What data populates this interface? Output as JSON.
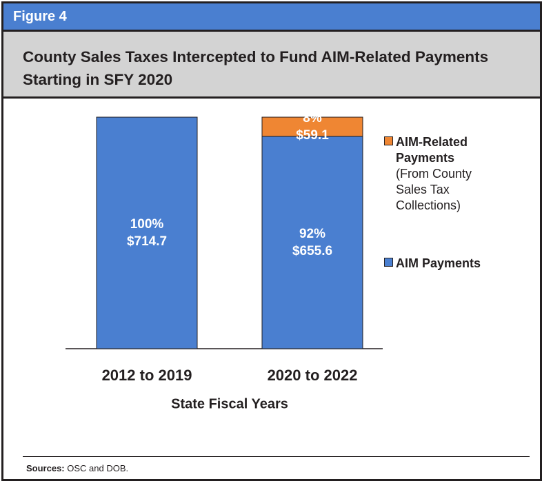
{
  "figure_label": "Figure 4",
  "chart_data": {
    "type": "stacked_bar",
    "title": "County Sales Taxes Intercepted to Fund AIM-Related Payments Starting in SFY 2020",
    "categories": [
      "2012 to 2019",
      "2020 to 2022"
    ],
    "x_label": "State Fiscal Years",
    "series": [
      {
        "name": "AIM Payments",
        "color": "#4a7fd0",
        "values": [
          714.7,
          655.6
        ],
        "value_labels": [
          "$714.7",
          "$655.6"
        ],
        "percents": [
          100,
          92
        ],
        "percent_labels": [
          "100%",
          "92%"
        ]
      },
      {
        "name": "AIM-Related Payments",
        "legend_note": "(From County Sales Tax Collections)",
        "color": "#ef8633",
        "values": [
          null,
          59.1
        ],
        "value_labels": [
          null,
          "$59.1"
        ],
        "percents": [
          null,
          8
        ],
        "percent_labels": [
          null,
          "8%"
        ]
      }
    ]
  },
  "source": {
    "label": "Sources:",
    "text": "OSC and DOB."
  }
}
